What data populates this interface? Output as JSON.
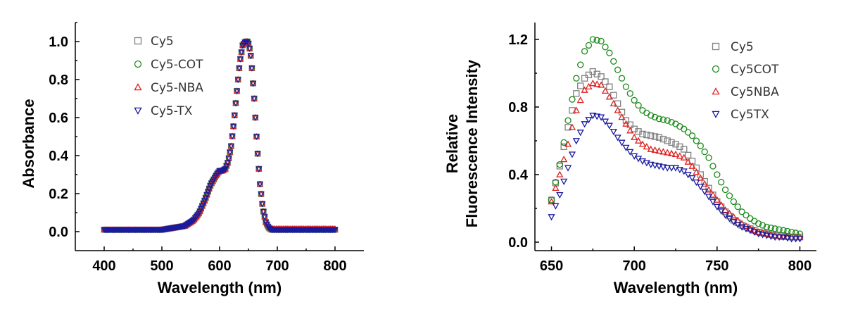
{
  "chart_data": [
    {
      "type": "scatter",
      "xlabel": "Wavelength (nm)",
      "ylabel": "Absorbance",
      "xlim": [
        350,
        850
      ],
      "ylim": [
        -0.1,
        1.1
      ],
      "xticks": [
        400,
        500,
        600,
        700,
        800
      ],
      "yticks": [
        0.0,
        0.2,
        0.4,
        0.6,
        0.8,
        1.0
      ],
      "xtick_labels": [
        "400",
        "500",
        "600",
        "700",
        "800"
      ],
      "ytick_labels": [
        "0.0",
        "0.2",
        "0.4",
        "0.6",
        "0.8",
        "1.0"
      ],
      "legend_position": "top-left",
      "series": [
        {
          "name": "Cy5",
          "marker": "square",
          "color": "#808080"
        },
        {
          "name": "Cy5-COT",
          "marker": "circle",
          "color": "#1a8a1a"
        },
        {
          "name": "Cy5-NBA",
          "marker": "triangle-up",
          "color": "#e02020"
        },
        {
          "name": "Cy5-TX",
          "marker": "triangle-down",
          "color": "#1a1aa0"
        }
      ],
      "x": [
        400,
        450,
        500,
        520,
        540,
        555,
        565,
        575,
        585,
        595,
        600,
        605,
        610,
        615,
        620,
        625,
        630,
        635,
        640,
        645,
        648,
        650,
        653,
        655,
        660,
        665,
        670,
        675,
        680,
        685,
        690,
        700,
        750,
        800
      ],
      "y": [
        0.01,
        0.01,
        0.01,
        0.02,
        0.03,
        0.06,
        0.1,
        0.17,
        0.25,
        0.3,
        0.32,
        0.32,
        0.33,
        0.37,
        0.45,
        0.58,
        0.74,
        0.89,
        0.98,
        1.0,
        1.0,
        0.99,
        0.95,
        0.9,
        0.7,
        0.45,
        0.25,
        0.12,
        0.05,
        0.02,
        0.01,
        0.01,
        0.01,
        0.01
      ]
    },
    {
      "type": "scatter",
      "xlabel": "Wavelength (nm)",
      "ylabel_line1": "Relative",
      "ylabel_line2": "Fluorescence Intensity",
      "xlim": [
        640,
        810
      ],
      "ylim": [
        -0.05,
        1.3
      ],
      "xticks": [
        650,
        700,
        750,
        800
      ],
      "yticks": [
        0.0,
        0.4,
        0.8,
        1.2
      ],
      "xtick_labels": [
        "650",
        "700",
        "750",
        "800"
      ],
      "ytick_labels": [
        "0.0",
        "0.4",
        "0.8",
        "1.2"
      ],
      "legend_position": "top-right",
      "x": [
        650,
        655,
        660,
        665,
        670,
        675,
        680,
        685,
        690,
        695,
        700,
        705,
        710,
        715,
        720,
        725,
        730,
        735,
        740,
        745,
        750,
        755,
        760,
        765,
        770,
        775,
        780,
        785,
        790,
        795,
        800
      ],
      "series": [
        {
          "name": "Cy5",
          "marker": "square",
          "color": "#808080",
          "values": [
            0.25,
            0.45,
            0.68,
            0.88,
            0.97,
            1.01,
            0.98,
            0.92,
            0.82,
            0.72,
            0.67,
            0.64,
            0.63,
            0.62,
            0.6,
            0.58,
            0.55,
            0.48,
            0.4,
            0.32,
            0.24,
            0.18,
            0.13,
            0.1,
            0.08,
            0.06,
            0.05,
            0.04,
            0.04,
            0.03,
            0.03
          ]
        },
        {
          "name": "Cy5COT",
          "marker": "circle",
          "color": "#1a8a1a",
          "values": [
            0.25,
            0.46,
            0.72,
            0.97,
            1.13,
            1.2,
            1.19,
            1.12,
            1.02,
            0.92,
            0.84,
            0.78,
            0.75,
            0.73,
            0.72,
            0.7,
            0.67,
            0.63,
            0.57,
            0.5,
            0.4,
            0.31,
            0.24,
            0.18,
            0.14,
            0.11,
            0.09,
            0.08,
            0.07,
            0.06,
            0.05
          ]
        },
        {
          "name": "Cy5NBA",
          "marker": "triangle-up",
          "color": "#e02020",
          "values": [
            0.24,
            0.4,
            0.58,
            0.78,
            0.9,
            0.94,
            0.93,
            0.86,
            0.78,
            0.7,
            0.62,
            0.58,
            0.55,
            0.54,
            0.53,
            0.52,
            0.5,
            0.45,
            0.38,
            0.31,
            0.25,
            0.19,
            0.15,
            0.11,
            0.08,
            0.06,
            0.05,
            0.04,
            0.03,
            0.03,
            0.03
          ]
        },
        {
          "name": "Cy5TX",
          "marker": "triangle-down",
          "color": "#1a1aa0",
          "values": [
            0.15,
            0.28,
            0.44,
            0.6,
            0.7,
            0.75,
            0.74,
            0.69,
            0.62,
            0.56,
            0.51,
            0.48,
            0.46,
            0.45,
            0.44,
            0.44,
            0.42,
            0.38,
            0.33,
            0.27,
            0.21,
            0.16,
            0.12,
            0.09,
            0.07,
            0.05,
            0.04,
            0.03,
            0.03,
            0.02,
            0.02
          ]
        }
      ]
    }
  ]
}
